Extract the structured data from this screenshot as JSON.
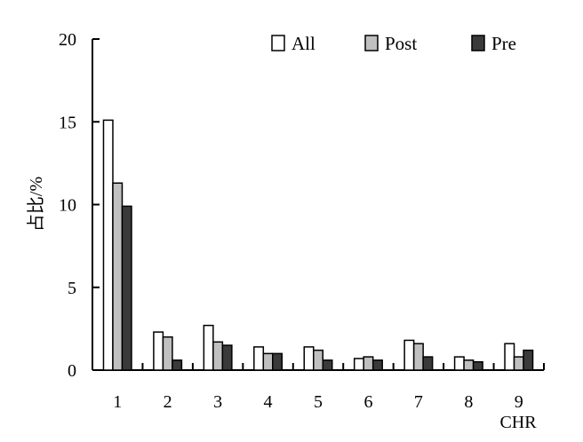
{
  "chart_data": {
    "type": "bar",
    "categories": [
      "1",
      "2",
      "3",
      "4",
      "5",
      "6",
      "7",
      "8",
      "9"
    ],
    "series": [
      {
        "name": "All",
        "values": [
          15.1,
          2.3,
          2.7,
          1.4,
          1.4,
          0.7,
          1.8,
          0.8,
          1.6
        ]
      },
      {
        "name": "Post",
        "values": [
          11.3,
          2.0,
          1.7,
          1.0,
          1.2,
          0.8,
          1.6,
          0.6,
          0.8
        ]
      },
      {
        "name": "Pre",
        "values": [
          9.9,
          0.6,
          1.5,
          1.0,
          0.6,
          0.6,
          0.8,
          0.5,
          1.2
        ]
      }
    ],
    "title": "",
    "xlabel": "CHR",
    "ylabel": "占比/%",
    "ylim": [
      0,
      20
    ],
    "yticks": [
      "0",
      "5",
      "10",
      "15",
      "20"
    ],
    "grid": false,
    "legend_position": "top-right",
    "colors": {
      "All": "#ffffff",
      "Post": "#c0c0c0",
      "Pre": "#3a3a3a"
    }
  }
}
